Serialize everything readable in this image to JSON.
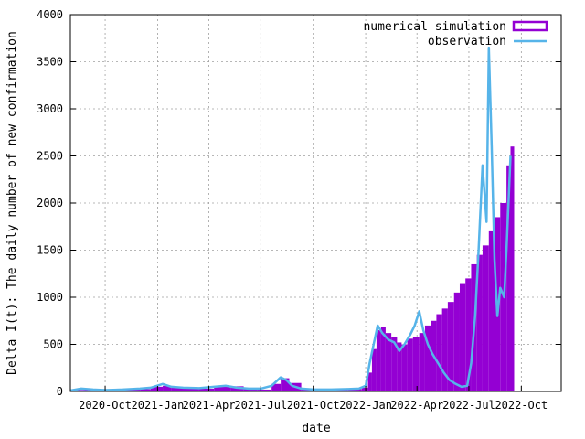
{
  "chart_data": {
    "type": "area",
    "title": "",
    "xlabel": "date",
    "ylabel": "Delta I(t): The daily number of new confirmation",
    "xlim": [
      "2020-08-01",
      "2022-12-10"
    ],
    "ylim": [
      0,
      4000
    ],
    "x_ticks": [
      {
        "date": "2020-10-01",
        "label": "2020-Oct"
      },
      {
        "date": "2021-01-01",
        "label": "2021-Jan"
      },
      {
        "date": "2021-04-01",
        "label": "2021-Apr"
      },
      {
        "date": "2021-07-01",
        "label": "2021-Jul"
      },
      {
        "date": "2021-10-01",
        "label": "2021-Oct"
      },
      {
        "date": "2022-01-01",
        "label": "2022-Jan"
      },
      {
        "date": "2022-04-01",
        "label": "2022-Apr"
      },
      {
        "date": "2022-07-01",
        "label": "2022-Jul"
      },
      {
        "date": "2022-10-01",
        "label": "2022-Oct"
      }
    ],
    "y_ticks": [
      0,
      500,
      1000,
      1500,
      2000,
      2500,
      3000,
      3500,
      4000
    ],
    "grid": true,
    "legend_position": "top-right",
    "series": [
      {
        "name": "numerical simulation",
        "style": "bars",
        "color": "#9400d3",
        "x": [
          "2020-08-01",
          "2020-09-01",
          "2020-10-01",
          "2020-11-01",
          "2020-12-01",
          "2020-12-20",
          "2021-01-10",
          "2021-01-25",
          "2021-02-15",
          "2021-03-15",
          "2021-04-10",
          "2021-05-10",
          "2021-06-01",
          "2021-06-25",
          "2021-07-20",
          "2021-08-05",
          "2021-08-20",
          "2021-09-10",
          "2021-10-01",
          "2021-11-01",
          "2021-12-01",
          "2021-12-25",
          "2022-01-05",
          "2022-01-12",
          "2022-01-20",
          "2022-01-28",
          "2022-02-05",
          "2022-02-15",
          "2022-02-25",
          "2022-03-05",
          "2022-03-15",
          "2022-03-25",
          "2022-04-05",
          "2022-04-15",
          "2022-04-25",
          "2022-05-05",
          "2022-05-15",
          "2022-05-25",
          "2022-06-05",
          "2022-06-15",
          "2022-06-25",
          "2022-07-05",
          "2022-07-15",
          "2022-07-25",
          "2022-08-05",
          "2022-08-15",
          "2022-08-25",
          "2022-09-05",
          "2022-09-12"
        ],
        "y": [
          15,
          15,
          15,
          20,
          25,
          50,
          60,
          45,
          35,
          30,
          50,
          55,
          30,
          20,
          80,
          140,
          90,
          30,
          20,
          20,
          25,
          40,
          200,
          450,
          650,
          680,
          620,
          580,
          520,
          500,
          560,
          580,
          620,
          700,
          750,
          820,
          880,
          950,
          1050,
          1150,
          1200,
          1350,
          1450,
          1550,
          1700,
          1850,
          2000,
          2400,
          2600
        ]
      },
      {
        "name": "observation",
        "style": "line",
        "color": "#56b4e9",
        "x": [
          "2020-08-01",
          "2020-08-20",
          "2020-09-10",
          "2020-10-01",
          "2020-11-01",
          "2020-12-01",
          "2020-12-20",
          "2021-01-10",
          "2021-01-25",
          "2021-02-15",
          "2021-03-15",
          "2021-04-10",
          "2021-05-01",
          "2021-05-20",
          "2021-06-10",
          "2021-07-01",
          "2021-07-20",
          "2021-08-05",
          "2021-08-15",
          "2021-08-25",
          "2021-09-10",
          "2021-10-01",
          "2021-11-01",
          "2021-12-01",
          "2021-12-20",
          "2022-01-01",
          "2022-01-08",
          "2022-01-15",
          "2022-01-22",
          "2022-01-30",
          "2022-02-10",
          "2022-02-20",
          "2022-03-01",
          "2022-03-10",
          "2022-03-20",
          "2022-03-28",
          "2022-04-05",
          "2022-04-12",
          "2022-04-20",
          "2022-04-28",
          "2022-05-08",
          "2022-05-18",
          "2022-05-28",
          "2022-06-08",
          "2022-06-18",
          "2022-06-28",
          "2022-07-05",
          "2022-07-12",
          "2022-07-18",
          "2022-07-25",
          "2022-08-01",
          "2022-08-05",
          "2022-08-10",
          "2022-08-15",
          "2022-08-20",
          "2022-08-25",
          "2022-09-01",
          "2022-09-05",
          "2022-09-12"
        ],
        "y": [
          10,
          30,
          20,
          15,
          20,
          30,
          40,
          80,
          50,
          40,
          35,
          50,
          60,
          40,
          30,
          30,
          60,
          150,
          120,
          60,
          30,
          20,
          20,
          25,
          30,
          60,
          300,
          500,
          700,
          620,
          550,
          520,
          430,
          500,
          600,
          700,
          850,
          650,
          500,
          400,
          300,
          200,
          120,
          80,
          50,
          60,
          300,
          800,
          1500,
          2400,
          1800,
          3650,
          2600,
          1400,
          800,
          1100,
          1000,
          1500,
          2500
        ]
      }
    ]
  }
}
